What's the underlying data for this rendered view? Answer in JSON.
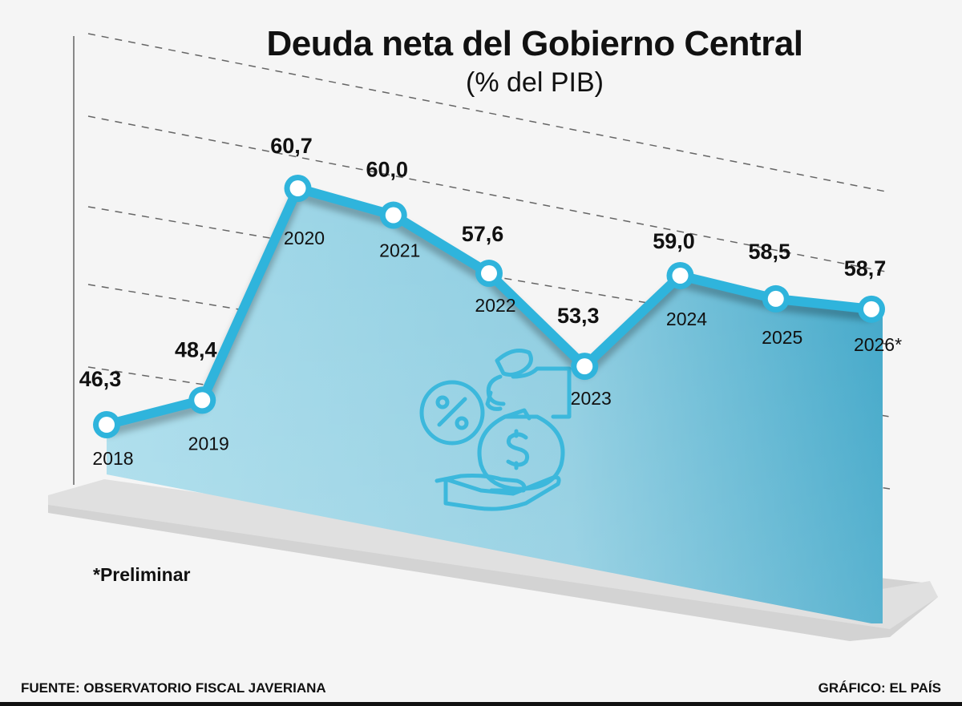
{
  "title": "Deuda neta del Gobierno Central",
  "subtitle": "(% del PIB)",
  "footnote": "*Preliminar",
  "source": "FUENTE: OBSERVATORIO FISCAL JAVERIANA",
  "credit": "GRÁFICO: EL PAÍS",
  "colors": {
    "line": "#2fb4dc",
    "area_top": "#a3d8e8",
    "area_bottom": "#2e9ec4",
    "marker_fill": "#ffffff",
    "text": "#111111"
  },
  "chart_data": {
    "type": "line",
    "categories": [
      "2018",
      "2019",
      "2020",
      "2021",
      "2022",
      "2023",
      "2024",
      "2025",
      "2026*"
    ],
    "value_labels": [
      "46,3",
      "48,4",
      "60,7",
      "60,0",
      "57,6",
      "53,3",
      "59,0",
      "58,5",
      "58,7"
    ],
    "values": [
      46.3,
      48.4,
      60.7,
      60.0,
      57.6,
      53.3,
      59.0,
      58.5,
      58.7
    ],
    "grid": true,
    "legend": "none"
  }
}
